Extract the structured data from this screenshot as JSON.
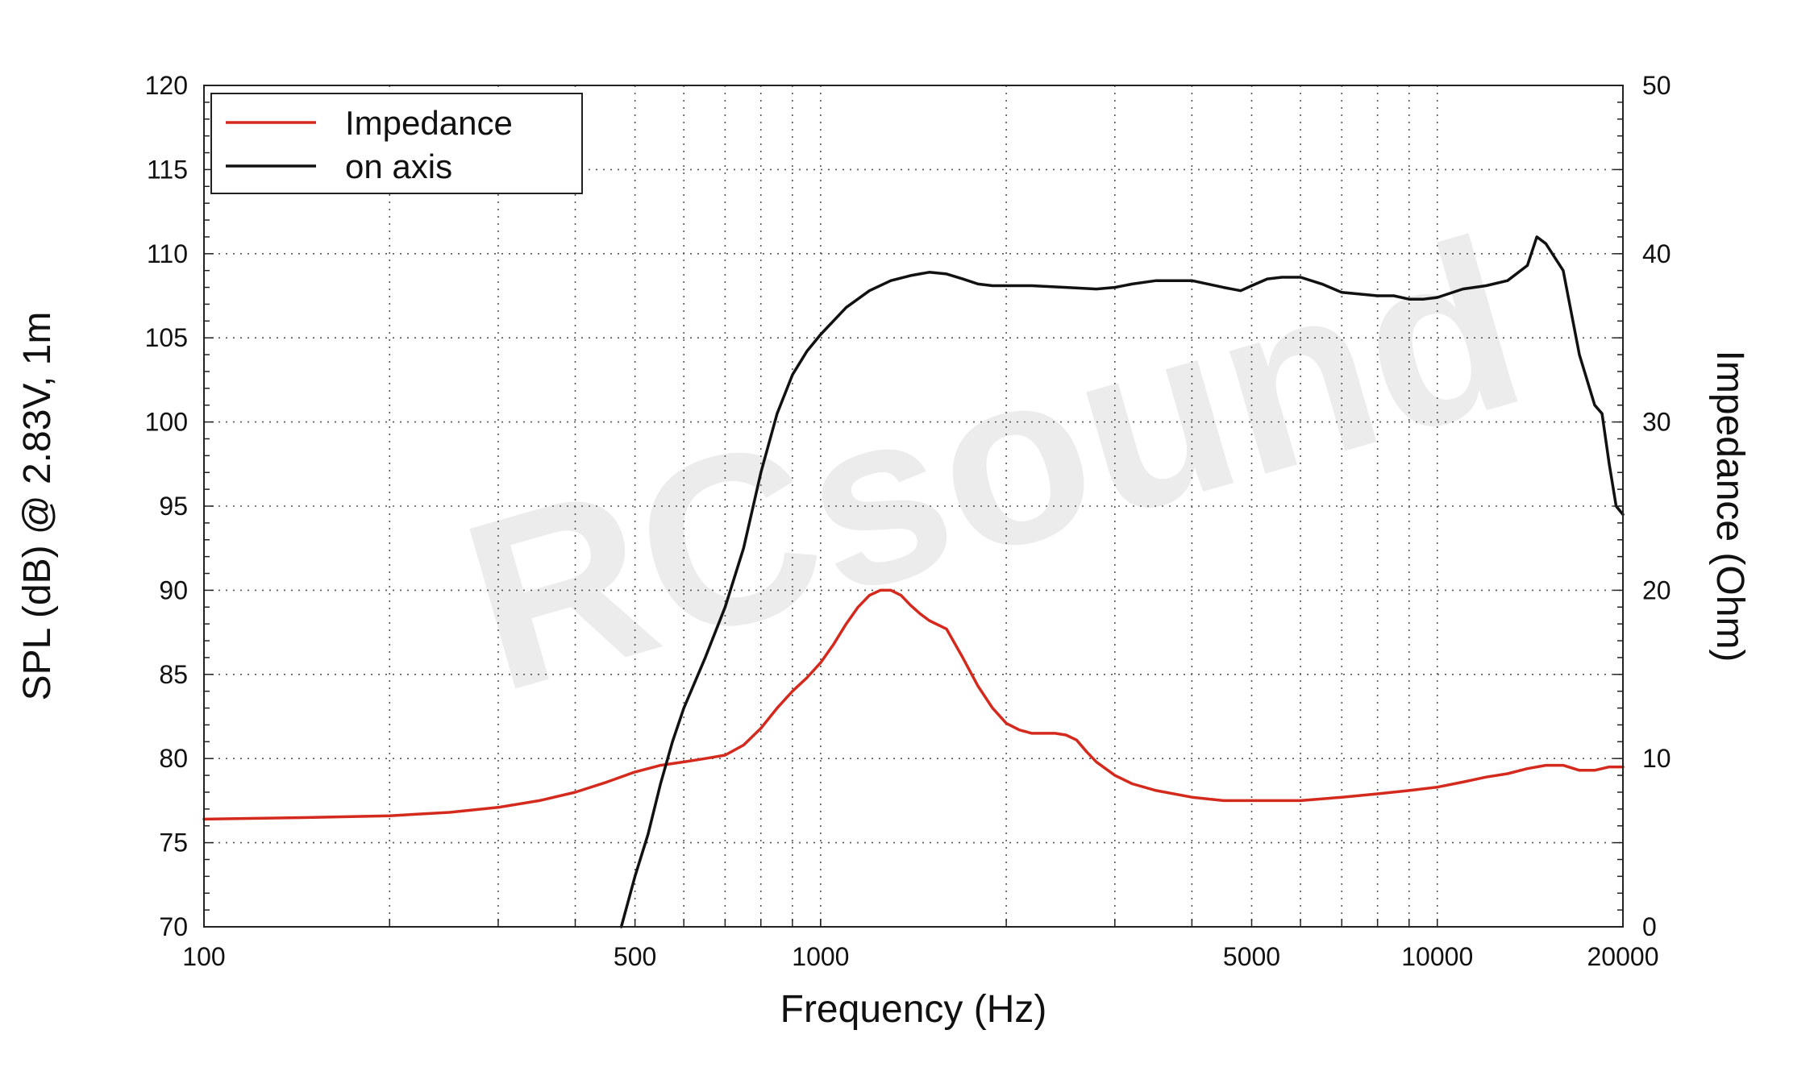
{
  "chart_data": {
    "type": "line",
    "xlabel": "Frequency (Hz)",
    "ylabel": "SPL (dB) @ 2.83V, 1m",
    "y2label": "Impedance (Ohm)",
    "xscale": "log",
    "xlim": [
      100,
      20000
    ],
    "ylim": [
      70,
      120
    ],
    "y2lim": [
      0,
      50
    ],
    "grid": true,
    "legend_position": "top-left",
    "x_ticks": [
      100,
      500,
      1000,
      5000,
      10000,
      20000
    ],
    "x_tick_labels": [
      "100",
      "500",
      "1000",
      "5000",
      "10000",
      "20000"
    ],
    "x_grid": [
      200,
      300,
      400,
      500,
      600,
      700,
      800,
      900,
      1000,
      2000,
      3000,
      4000,
      5000,
      6000,
      7000,
      8000,
      9000,
      10000
    ],
    "y_ticks": [
      70,
      75,
      80,
      85,
      90,
      95,
      100,
      105,
      110,
      115,
      120
    ],
    "y_tick_labels": [
      "70",
      "75",
      "80",
      "85",
      "90",
      "95",
      "100",
      "105",
      "110",
      "115",
      "120"
    ],
    "y2_ticks": [
      0,
      10,
      20,
      30,
      40,
      50
    ],
    "y2_tick_labels": [
      "0",
      "10",
      "20",
      "30",
      "40",
      "50"
    ],
    "watermark": "RCsound",
    "series": [
      {
        "name": "Impedance",
        "color": "#d42a1e",
        "axis": "right",
        "x": [
          100,
          150,
          200,
          250,
          300,
          350,
          400,
          450,
          500,
          550,
          600,
          650,
          700,
          750,
          800,
          850,
          900,
          950,
          1000,
          1050,
          1100,
          1150,
          1200,
          1250,
          1300,
          1350,
          1400,
          1450,
          1500,
          1600,
          1700,
          1800,
          1900,
          2000,
          2100,
          2200,
          2300,
          2400,
          2500,
          2600,
          2700,
          2800,
          3000,
          3200,
          3500,
          4000,
          4500,
          5000,
          6000,
          7000,
          8000,
          9000,
          10000,
          11000,
          12000,
          13000,
          14000,
          15000,
          16000,
          17000,
          18000,
          19000,
          20000
        ],
        "y": [
          6.4,
          6.5,
          6.6,
          6.8,
          7.1,
          7.5,
          8.0,
          8.6,
          9.2,
          9.6,
          9.8,
          10.0,
          10.2,
          10.8,
          11.8,
          13.0,
          14.0,
          14.8,
          15.7,
          16.8,
          18.0,
          19.0,
          19.7,
          20.0,
          20.0,
          19.7,
          19.1,
          18.6,
          18.2,
          17.7,
          16.0,
          14.3,
          13.0,
          12.1,
          11.7,
          11.5,
          11.5,
          11.5,
          11.4,
          11.1,
          10.4,
          9.8,
          9.0,
          8.5,
          8.1,
          7.7,
          7.5,
          7.5,
          7.5,
          7.7,
          7.9,
          8.1,
          8.3,
          8.6,
          8.9,
          9.1,
          9.4,
          9.6,
          9.6,
          9.3,
          9.3,
          9.5,
          9.5
        ]
      },
      {
        "name": "on axis",
        "color": "#111111",
        "axis": "left",
        "x": [
          475,
          500,
          525,
          550,
          575,
          600,
          650,
          700,
          750,
          800,
          850,
          900,
          950,
          1000,
          1100,
          1200,
          1300,
          1400,
          1500,
          1600,
          1700,
          1800,
          1900,
          2000,
          2200,
          2500,
          2800,
          3000,
          3200,
          3500,
          4000,
          4500,
          4800,
          5000,
          5300,
          5600,
          6000,
          6500,
          7000,
          8000,
          8500,
          9000,
          9500,
          10000,
          11000,
          12000,
          13000,
          14000,
          14500,
          15000,
          16000,
          17000,
          18000,
          18500,
          19000,
          19500,
          20000
        ],
        "y": [
          70,
          73,
          75.5,
          78.5,
          81,
          83,
          86,
          89,
          92.5,
          97,
          100.5,
          102.8,
          104.2,
          105.2,
          106.8,
          107.8,
          108.4,
          108.7,
          108.9,
          108.8,
          108.5,
          108.2,
          108.1,
          108.1,
          108.1,
          108.0,
          107.9,
          108.0,
          108.2,
          108.4,
          108.4,
          108.0,
          107.8,
          108.1,
          108.5,
          108.6,
          108.6,
          108.2,
          107.7,
          107.5,
          107.5,
          107.3,
          107.3,
          107.4,
          107.9,
          108.1,
          108.4,
          109.3,
          111.0,
          110.6,
          109.0,
          104.0,
          101.0,
          100.5,
          97.5,
          95.0,
          94.5
        ]
      }
    ]
  }
}
